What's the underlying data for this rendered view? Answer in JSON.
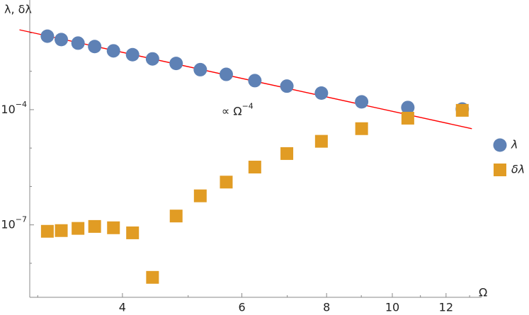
{
  "chart_data": {
    "type": "scatter",
    "x_label": "Ω",
    "y_label": "λ, δλ",
    "xscale": "log",
    "yscale": "log",
    "xlim": [
      2.92,
      13.28
    ],
    "ylim": [
      1.3e-09,
      0.058
    ],
    "xticks": [
      4,
      6,
      8,
      10,
      12
    ],
    "xminor": [
      3,
      5,
      7,
      9,
      11,
      13
    ],
    "yticks": [
      {
        "value": 0.0001,
        "label": "10",
        "sup": "−4"
      },
      {
        "value": 1e-07,
        "label": "10",
        "sup": "−7"
      }
    ],
    "yminor": [
      0.01,
      0.001,
      1e-05,
      1e-06,
      1e-08
    ],
    "legend": "right",
    "series": [
      {
        "name": "λ",
        "color": "#5e81b5",
        "marker": "circle",
        "x": [
          3.1,
          3.25,
          3.44,
          3.64,
          3.88,
          4.14,
          4.43,
          4.8,
          5.21,
          5.69,
          6.27,
          6.99,
          7.86,
          9.01,
          10.54,
          12.68
        ],
        "values": [
          0.0082,
          0.0067,
          0.0054,
          0.0044,
          0.0034,
          0.0027,
          0.0021,
          0.0016,
          0.0011,
          0.00083,
          0.00057,
          0.00041,
          0.00027,
          0.00016,
          0.000114,
          0.000104
        ]
      },
      {
        "name": "δλ",
        "color": "#e19c24",
        "marker": "square",
        "x": [
          3.1,
          3.25,
          3.44,
          3.64,
          3.88,
          4.14,
          4.43,
          4.8,
          5.21,
          5.69,
          6.27,
          6.99,
          7.86,
          9.01,
          10.54,
          12.68
        ],
        "values": [
          6.8e-08,
          7.1e-08,
          8.1e-08,
          9.1e-08,
          8.4e-08,
          6.2e-08,
          4.3e-09,
          1.7e-07,
          5.7e-07,
          1.3e-06,
          3.2e-06,
          7.2e-06,
          1.5e-05,
          3.2e-05,
          6e-05,
          9.6e-05
        ]
      }
    ],
    "fit_line": {
      "color": "#ff0000",
      "x": [
        2.82,
        13.1
      ],
      "values": [
        0.012,
        3.2e-05
      ]
    },
    "annotation": {
      "text": "∝ Ω",
      "sup": "−4",
      "x": 5.6,
      "y": 9e-05
    }
  }
}
